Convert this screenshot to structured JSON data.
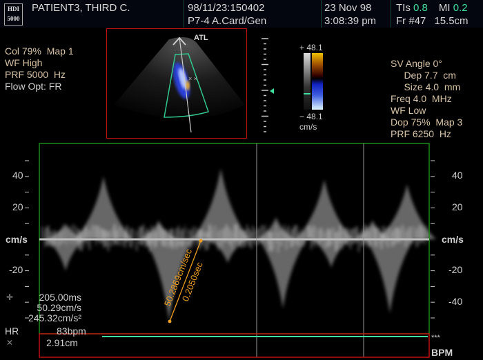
{
  "header": {
    "logo": [
      "HDI",
      "5000"
    ],
    "patient": "PATIENT3, THIRD C.",
    "study_id": "98/11/23:150402",
    "preset": "P7-4 A.Card/Gen",
    "date": "23 Nov 98",
    "time": "3:08:39 pm",
    "tis_label": "TIs",
    "tis_value": "0.8",
    "mi_label": "MI",
    "mi_value": "0.2",
    "frame": "Fr #47",
    "depth": "15.5cm"
  },
  "color_settings": [
    "Col 79%  Map 1",
    "WF High",
    "PRF 5000  Hz",
    "Flow Opt: FR"
  ],
  "image_logo": "ATL",
  "color_bar": {
    "top": "+ 48.1",
    "bottom": "− 48.1",
    "unit": "cm/s"
  },
  "doppler_settings": [
    "SV Angle 0°",
    "     Dep 7.7  cm",
    "     Size 4.0  mm",
    "Freq 4.0  MHz",
    "WF Low",
    "Dop 75%  Map 3",
    "PRF 6250  Hz"
  ],
  "spectrum": {
    "left_ticks": [
      "40",
      "20",
      "cm/s",
      "-20"
    ],
    "right_ticks": [
      "40",
      "20",
      "cm/s",
      "-20",
      "-40"
    ],
    "unit": "cm/s",
    "measure_velocity": "50.2869cm/sec",
    "measure_time": "0.2050sec"
  },
  "measurements": {
    "time": "205.00ms",
    "velocity": "50.29cm/s",
    "accel": "245.32cm/s²",
    "hr_label": "HR",
    "hr_value": "83bpm",
    "distance": "2.91cm",
    "stars": "***",
    "bpm": "BPM"
  },
  "colors": {
    "accent_green": "#40e0a0",
    "annotation_orange": "#f0a020",
    "frame_red": "#c01010",
    "frame_green": "#1a8a1a"
  }
}
